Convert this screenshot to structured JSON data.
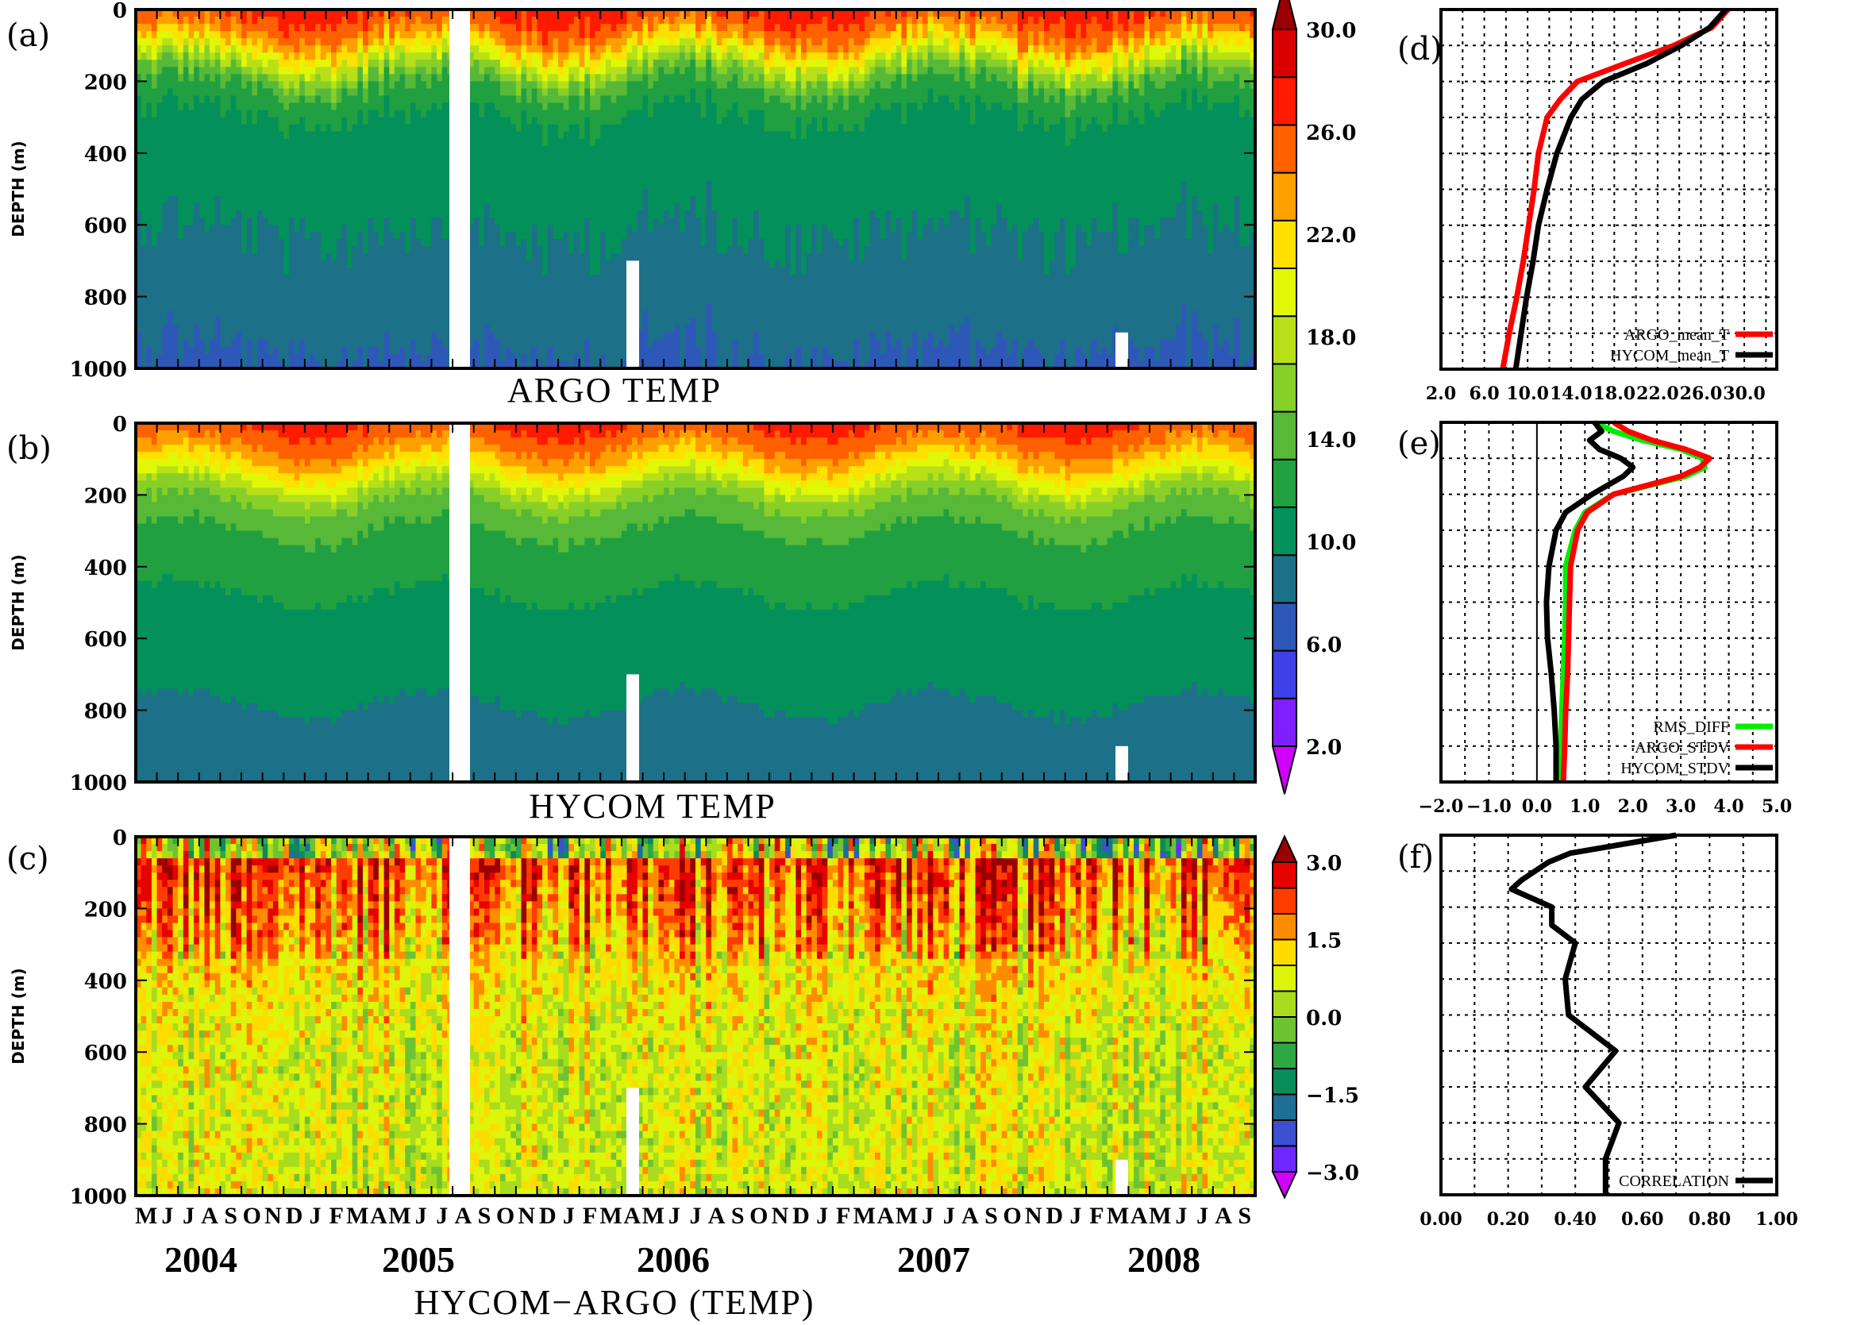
{
  "figure": {
    "xlabel": "HYCOM−ARGO (TEMP)",
    "months": [
      "M",
      "J",
      "J",
      "A",
      "S",
      "O",
      "N",
      "D",
      "J",
      "F",
      "M",
      "A",
      "M",
      "J",
      "J",
      "A",
      "S",
      "O",
      "N",
      "D",
      "J",
      "F",
      "M",
      "A",
      "M",
      "J",
      "J",
      "A",
      "S",
      "O",
      "N",
      "D",
      "J",
      "F",
      "M",
      "A",
      "M",
      "J",
      "J",
      "A",
      "S",
      "O",
      "N",
      "D",
      "J",
      "F",
      "M",
      "A",
      "M",
      "J",
      "J",
      "A",
      "S"
    ],
    "years": [
      "2004",
      "2005",
      "2006",
      "2007",
      "2008"
    ]
  },
  "chart_data": [
    {
      "type": "heatmap",
      "panel_label": "(a)",
      "title": "ARGO TEMP",
      "ylabel": "DEPTH (m)",
      "yticks": [
        "0",
        "200",
        "400",
        "600",
        "800",
        "1000"
      ],
      "ylim": [
        1000,
        0
      ],
      "x_range": [
        "2004-05",
        "2008-09"
      ],
      "data_gap": [
        "2005-08",
        "2005-09"
      ],
      "colorbar": "temp"
    },
    {
      "type": "heatmap",
      "panel_label": "(b)",
      "title": "HYCOM TEMP",
      "ylabel": "DEPTH (m)",
      "yticks": [
        "0",
        "200",
        "400",
        "600",
        "800",
        "1000"
      ],
      "ylim": [
        1000,
        0
      ],
      "x_range": [
        "2004-05",
        "2008-09"
      ],
      "data_gap": [
        "2005-08",
        "2005-09"
      ],
      "colorbar": "temp"
    },
    {
      "type": "heatmap",
      "panel_label": "(c)",
      "title": "HYCOM−ARGO (TEMP)",
      "ylabel": "DEPTH (m)",
      "yticks": [
        "0",
        "200",
        "400",
        "600",
        "800",
        "1000"
      ],
      "ylim": [
        1000,
        0
      ],
      "x_range": [
        "2004-05",
        "2008-09"
      ],
      "data_gap": [
        "2005-08",
        "2005-09"
      ],
      "colorbar": "diff"
    },
    {
      "type": "line",
      "panel_label": "(d)",
      "xlim": [
        2,
        33
      ],
      "ylim": [
        1000,
        0
      ],
      "grid": true,
      "legend": "bottom-right",
      "xticks": [
        "2.0",
        "6.0",
        "10.0",
        "14.0",
        "18.0",
        "22.0",
        "26.0",
        "30.0"
      ],
      "depth": [
        0,
        50,
        100,
        150,
        200,
        250,
        300,
        400,
        500,
        600,
        700,
        800,
        900,
        1000
      ],
      "series": [
        {
          "name": "ARGO_mean_T",
          "color": "#ff0000",
          "values": [
            28.5,
            27.0,
            23.5,
            19.0,
            14.6,
            13.0,
            11.8,
            11.0,
            10.6,
            10.1,
            9.6,
            9.0,
            8.3,
            7.7
          ]
        },
        {
          "name": "HYCOM_mean_T",
          "color": "#000000",
          "values": [
            28.3,
            26.8,
            24.2,
            21.0,
            17.0,
            15.0,
            14.0,
            12.7,
            11.8,
            11.0,
            10.5,
            9.9,
            9.4,
            8.9
          ]
        }
      ]
    },
    {
      "type": "line",
      "panel_label": "(e)",
      "xlim": [
        -2,
        5
      ],
      "ylim": [
        1000,
        0
      ],
      "grid": true,
      "legend": "bottom-right",
      "xticks": [
        "−2.0",
        "−1.0",
        "0.0",
        "1.0",
        "2.0",
        "3.0",
        "4.0",
        "5.0"
      ],
      "depth": [
        0,
        25,
        50,
        75,
        100,
        125,
        150,
        200,
        250,
        300,
        400,
        500,
        600,
        700,
        800,
        900,
        1000
      ],
      "series": [
        {
          "name": "RMS_DIFF",
          "color": "#00ee00",
          "values": [
            1.2,
            1.6,
            2.2,
            3.0,
            3.45,
            3.5,
            3.1,
            1.6,
            1.0,
            0.8,
            0.6,
            0.6,
            0.58,
            0.55,
            0.52,
            0.5,
            0.48
          ]
        },
        {
          "name": "ARGO_STDV",
          "color": "#ff0000",
          "values": [
            1.6,
            1.9,
            2.4,
            3.1,
            3.6,
            3.4,
            3.0,
            1.6,
            1.05,
            0.85,
            0.7,
            0.68,
            0.66,
            0.64,
            0.6,
            0.58,
            0.55
          ]
        },
        {
          "name": "HYCOM_STDV",
          "color": "#000000",
          "values": [
            1.2,
            1.35,
            1.1,
            1.3,
            1.75,
            2.0,
            1.8,
            1.15,
            0.6,
            0.4,
            0.25,
            0.2,
            0.22,
            0.3,
            0.36,
            0.4,
            0.4
          ]
        }
      ]
    },
    {
      "type": "line",
      "panel_label": "(f)",
      "xlim": [
        0,
        1
      ],
      "ylim": [
        1000,
        0
      ],
      "grid": true,
      "legend": "bottom-right",
      "xticks": [
        "0.00",
        "0.20",
        "0.40",
        "0.60",
        "0.80",
        "1.00"
      ],
      "depth": [
        0,
        50,
        75,
        125,
        150,
        200,
        250,
        300,
        400,
        500,
        600,
        700,
        800,
        900,
        1000
      ],
      "series": [
        {
          "name": "CORRELATION",
          "color": "#000000",
          "values": [
            0.7,
            0.385,
            0.32,
            0.24,
            0.21,
            0.33,
            0.33,
            0.4,
            0.37,
            0.38,
            0.52,
            0.43,
            0.53,
            0.49,
            0.49
          ]
        }
      ]
    }
  ],
  "colorbars": {
    "temp": {
      "levels": [
        2,
        4,
        6,
        8,
        10,
        12,
        14,
        16,
        18,
        20,
        22,
        24,
        26,
        28,
        30,
        32
      ],
      "labels": [
        "2.0",
        "6.0",
        "10.0",
        "14.0",
        "18.0",
        "22.0",
        "26.0",
        "30.0"
      ],
      "colors": [
        "#d000ff",
        "#7f1fff",
        "#4040e8",
        "#2e58b8",
        "#1c7088",
        "#04905a",
        "#20a040",
        "#58b838",
        "#88d028",
        "#b8e018",
        "#e0f808",
        "#ffe000",
        "#ffa000",
        "#ff6000",
        "#ff1a00",
        "#d80000",
        "#9a0000"
      ]
    },
    "diff": {
      "levels": [
        -3,
        -2.5,
        -2,
        -1.5,
        -1,
        -0.5,
        0,
        0.5,
        1,
        1.5,
        2,
        2.5,
        3
      ],
      "labels": [
        "−3.0",
        "−1.5",
        "0.0",
        "1.5",
        "3.0"
      ],
      "colors": [
        "#d200ff",
        "#6e28ff",
        "#3c50d2",
        "#1e6e96",
        "#0a8c5a",
        "#2ea844",
        "#6ec332",
        "#a8dc1e",
        "#dcf50a",
        "#ffdc00",
        "#ff8c00",
        "#ff3c00",
        "#e60000",
        "#9a0000"
      ]
    }
  }
}
